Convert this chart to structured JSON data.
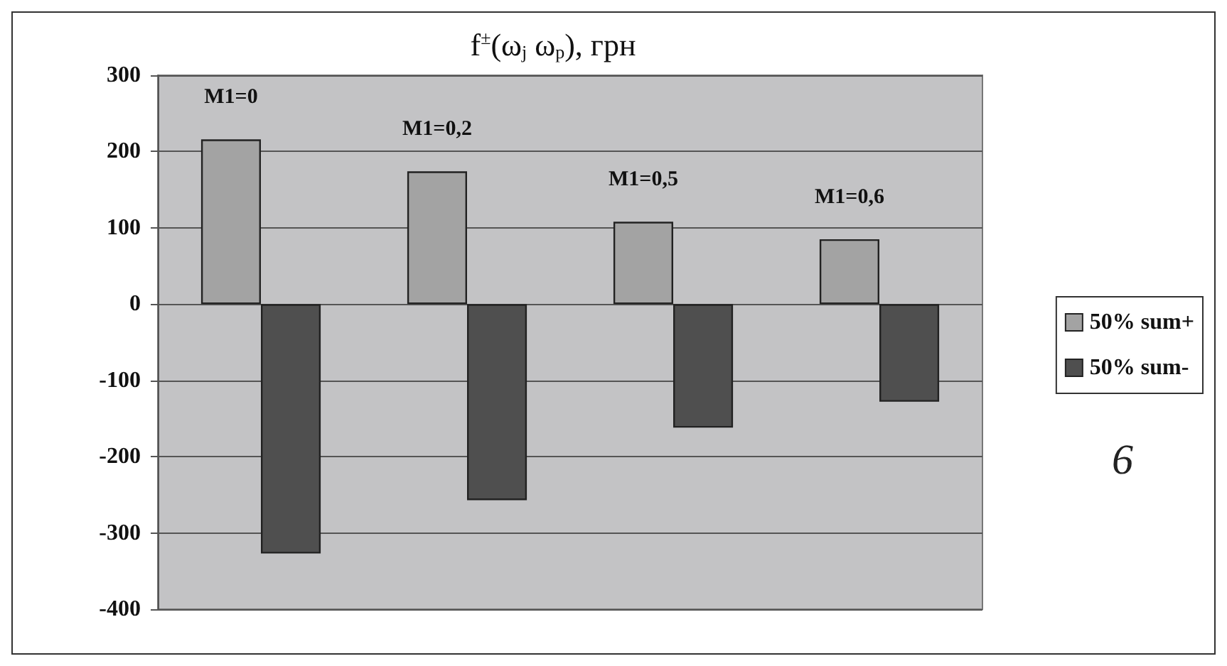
{
  "chart_data": {
    "type": "bar",
    "title": "f$^{±}$(ω$_{j}$ ω$_{p}$), грн",
    "categories": [
      "M1=0",
      "M1=0,2",
      "M1=0,5",
      "M1=0,6"
    ],
    "series": [
      {
        "name": "50% sum+",
        "color": "#a3a3a3",
        "values": [
          216,
          174,
          108,
          85
        ]
      },
      {
        "name": "50% sum-",
        "color": "#4f4f4f",
        "values": [
          -327,
          -257,
          -162,
          -128
        ]
      }
    ],
    "ylim": [
      -400,
      300
    ],
    "yticks": [
      -400,
      -300,
      -200,
      -100,
      0,
      100,
      200,
      300
    ],
    "grid": "y",
    "legend": "right",
    "tick_labels": "y",
    "annotations": [
      "6"
    ]
  }
}
